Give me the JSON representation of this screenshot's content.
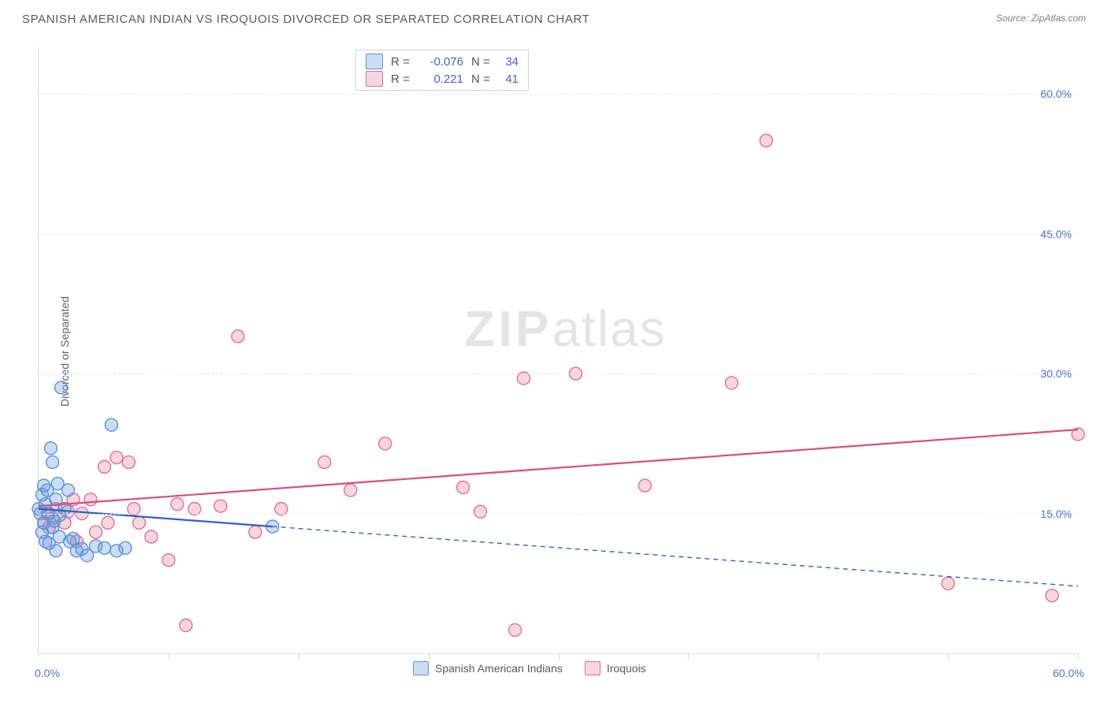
{
  "title": "SPANISH AMERICAN INDIAN VS IROQUOIS DIVORCED OR SEPARATED CORRELATION CHART",
  "source_label": "Source: ZipAtlas.com",
  "y_axis_label": "Divorced or Separated",
  "watermark": {
    "part1": "ZIP",
    "part2": "atlas"
  },
  "chart": {
    "type": "scatter",
    "xlim": [
      0,
      60
    ],
    "ylim": [
      0,
      65
    ],
    "x_origin_label": "0.0%",
    "x_max_label": "60.0%",
    "y_ticks": [
      15,
      30,
      45,
      60
    ],
    "y_tick_labels": [
      "15.0%",
      "30.0%",
      "45.0%",
      "60.0%"
    ],
    "x_tick_positions": [
      7.5,
      15,
      22.5,
      30,
      37.5,
      45,
      52.5,
      60
    ],
    "grid_color": "#e3e7ec",
    "axis_color": "#d7dbe0",
    "background_color": "#ffffff",
    "label_color": "#4d74d6",
    "marker_radius": 8,
    "marker_stroke_width": 1.4,
    "line_width": 2.2,
    "series": {
      "spanish": {
        "label": "Spanish American Indians",
        "color_fill": "rgba(105,159,222,0.35)",
        "color_stroke": "#5a93d9",
        "line_color": "#2f62c8",
        "r_value": "-0.076",
        "n_value": "34",
        "trend": {
          "x1": 0,
          "y1": 15.5,
          "x2": 13.5,
          "y2": 13.6,
          "x2_ext": 60,
          "y2_ext": 7.2,
          "solid_until_x": 13.5
        },
        "points": [
          [
            0.0,
            15.5
          ],
          [
            0.1,
            15.0
          ],
          [
            0.2,
            17.0
          ],
          [
            0.2,
            13.0
          ],
          [
            0.3,
            18.0
          ],
          [
            0.3,
            14.0
          ],
          [
            0.4,
            16.0
          ],
          [
            0.4,
            12.0
          ],
          [
            0.5,
            17.5
          ],
          [
            0.6,
            11.8
          ],
          [
            0.6,
            15.0
          ],
          [
            0.7,
            22.0
          ],
          [
            0.8,
            20.5
          ],
          [
            0.8,
            13.5
          ],
          [
            0.9,
            14.2
          ],
          [
            1.0,
            16.5
          ],
          [
            1.0,
            11.0
          ],
          [
            1.1,
            18.2
          ],
          [
            1.2,
            12.5
          ],
          [
            1.2,
            14.8
          ],
          [
            1.3,
            28.5
          ],
          [
            1.5,
            15.5
          ],
          [
            1.7,
            17.5
          ],
          [
            1.8,
            12.0
          ],
          [
            2.0,
            12.3
          ],
          [
            2.2,
            11.0
          ],
          [
            2.5,
            11.2
          ],
          [
            2.8,
            10.5
          ],
          [
            3.3,
            11.5
          ],
          [
            3.8,
            11.3
          ],
          [
            4.2,
            24.5
          ],
          [
            4.5,
            11.0
          ],
          [
            5.0,
            11.3
          ],
          [
            13.5,
            13.6
          ]
        ]
      },
      "iroquois": {
        "label": "Iroquois",
        "color_fill": "rgba(231,120,153,0.30)",
        "color_stroke": "#e26f94",
        "line_color": "#e04a7e",
        "r_value": "0.221",
        "n_value": "41",
        "trend": {
          "x1": 0,
          "y1": 15.8,
          "x2": 60,
          "y2": 24.0
        },
        "points": [
          [
            0.3,
            14.0
          ],
          [
            0.5,
            15.0
          ],
          [
            0.6,
            13.5
          ],
          [
            0.8,
            14.5
          ],
          [
            1.0,
            15.5
          ],
          [
            1.5,
            14.0
          ],
          [
            1.7,
            15.2
          ],
          [
            2.0,
            16.5
          ],
          [
            2.2,
            12.0
          ],
          [
            2.5,
            15.0
          ],
          [
            3.0,
            16.5
          ],
          [
            3.3,
            13.0
          ],
          [
            3.8,
            20.0
          ],
          [
            4.0,
            14.0
          ],
          [
            4.5,
            21.0
          ],
          [
            5.2,
            20.5
          ],
          [
            5.5,
            15.5
          ],
          [
            5.8,
            14.0
          ],
          [
            6.5,
            12.5
          ],
          [
            7.5,
            10.0
          ],
          [
            8.5,
            3.0
          ],
          [
            8.0,
            16.0
          ],
          [
            9.0,
            15.5
          ],
          [
            10.5,
            15.8
          ],
          [
            11.5,
            34.0
          ],
          [
            12.5,
            13.0
          ],
          [
            14.0,
            15.5
          ],
          [
            16.5,
            20.5
          ],
          [
            18.0,
            17.5
          ],
          [
            20.0,
            22.5
          ],
          [
            24.5,
            17.8
          ],
          [
            25.5,
            15.2
          ],
          [
            27.5,
            2.5
          ],
          [
            28.0,
            29.5
          ],
          [
            31.0,
            30.0
          ],
          [
            35.0,
            18.0
          ],
          [
            40.0,
            29.0
          ],
          [
            42.0,
            55.0
          ],
          [
            52.5,
            7.5
          ],
          [
            58.5,
            6.2
          ],
          [
            60.0,
            23.5
          ]
        ]
      }
    }
  },
  "legend_top": {
    "r_label": "R =",
    "n_label": "N ="
  }
}
